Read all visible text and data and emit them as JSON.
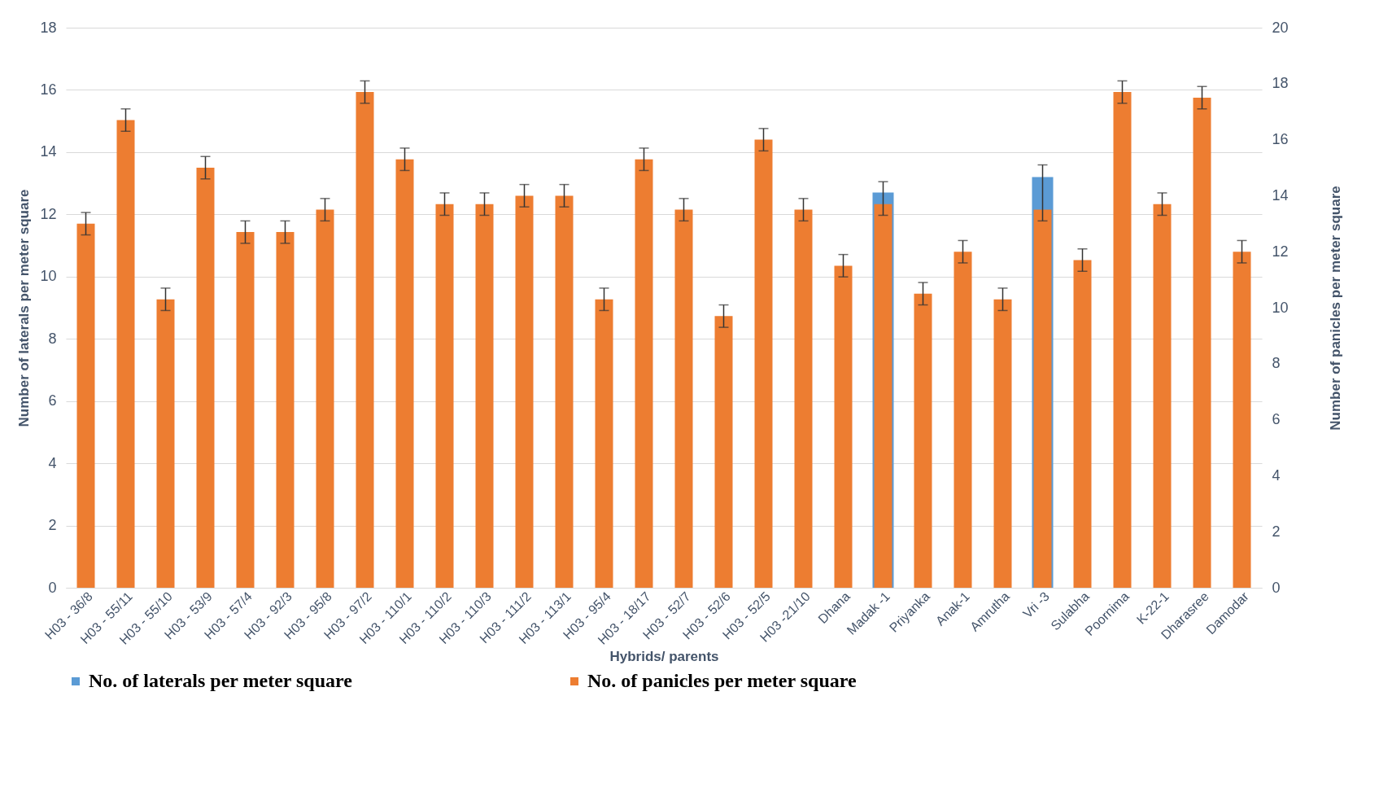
{
  "chart_data": {
    "type": "bar",
    "xlabel": "Hybrids/ parents",
    "ylabel": "Number of laterals per meter square",
    "y2label": "Number of panicles per meter square",
    "categories": [
      "H03 - 36/8",
      "H03 - 55/11",
      "H03 - 55/10",
      "H03 - 53/9",
      "H03 - 57/4",
      "H03 - 92/3",
      "H03 - 95/8",
      "H03 - 97/2",
      "H03 - 110/1",
      "H03 - 110/2",
      "H03 - 110/3",
      "H03 - 111/2",
      "H03 - 113/1",
      "H03 - 95/4",
      "H03 - 18/17",
      "H03 - 52/7",
      "H03 - 52/6",
      "H03 - 52/5",
      "H03 -21/10",
      "Dhana",
      "Madak -1",
      "Priyanka",
      "Anak-1",
      "Amrutha",
      "Vri -3",
      "Sulabha",
      "Poornima",
      "K-22-1",
      "Dharasree",
      "Damodar"
    ],
    "series": [
      {
        "name": "No. of laterals per meter square",
        "color": "#5b9bd5",
        "values": [
          null,
          null,
          null,
          null,
          null,
          null,
          null,
          null,
          null,
          null,
          null,
          null,
          null,
          null,
          null,
          null,
          null,
          null,
          null,
          null,
          12.7,
          null,
          null,
          null,
          13.2,
          null,
          null,
          null,
          null,
          null
        ]
      },
      {
        "name": "No. of panicles per meter square",
        "color": "#ed7d31",
        "axis": "y2",
        "values": [
          13.0,
          16.7,
          10.3,
          15.0,
          12.7,
          12.7,
          13.5,
          17.7,
          15.3,
          13.7,
          13.7,
          14.0,
          14.0,
          10.3,
          15.3,
          13.5,
          9.7,
          16.0,
          13.5,
          11.5,
          13.7,
          10.5,
          12.0,
          10.3,
          13.5,
          11.7,
          17.7,
          13.7,
          17.5,
          12.0
        ],
        "errors": [
          0.4,
          0.4,
          0.4,
          0.4,
          0.4,
          0.4,
          0.4,
          0.4,
          0.4,
          0.4,
          0.4,
          0.4,
          0.4,
          0.4,
          0.4,
          0.4,
          0.4,
          0.4,
          0.4,
          0.4,
          [
            13.3,
            14.5
          ],
          0.4,
          0.4,
          0.4,
          [
            13.1,
            15.1
          ],
          0.4,
          0.4,
          0.4,
          0.4,
          0.4
        ]
      }
    ],
    "ylim": [
      0,
      18
    ],
    "yticks": [
      0,
      2,
      4,
      6,
      8,
      10,
      12,
      14,
      16,
      18
    ],
    "y2lim": [
      0,
      20
    ],
    "y2ticks": [
      0,
      2,
      4,
      6,
      8,
      10,
      12,
      14,
      16,
      18,
      20
    ],
    "grid": "y",
    "legend": "bottom"
  }
}
